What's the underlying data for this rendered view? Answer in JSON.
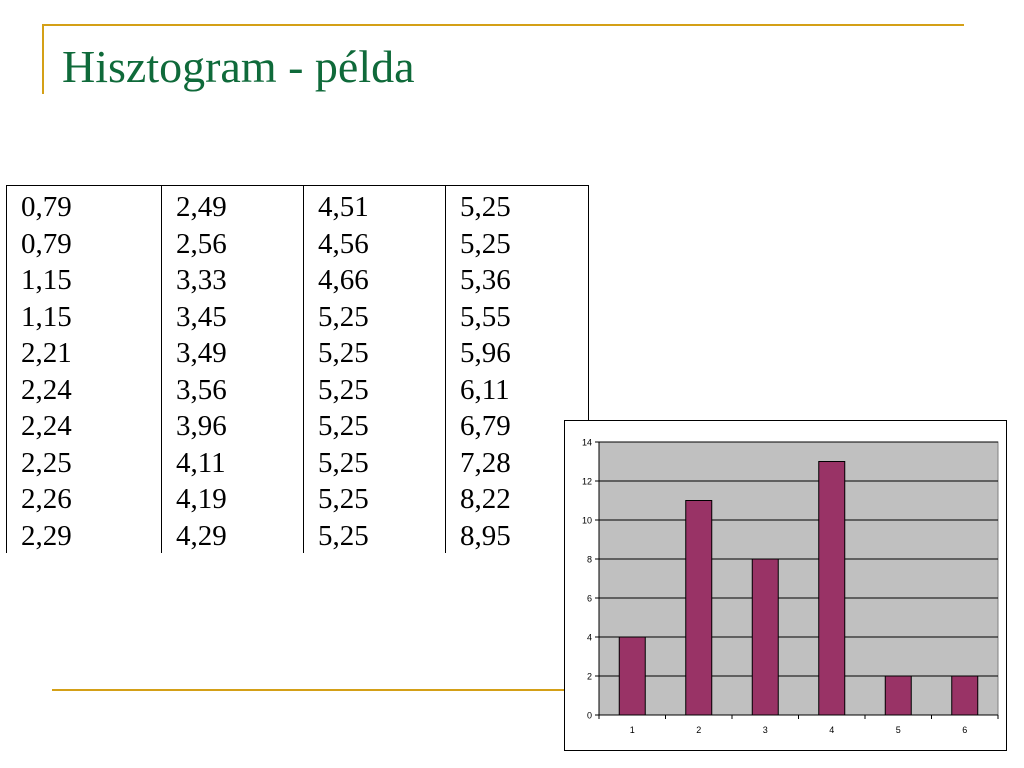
{
  "title": "Hisztogram - példa",
  "table": {
    "columns": [
      [
        "0,79",
        "0,79",
        "1,15",
        "1,15",
        "2,21",
        "2,24",
        "2,24",
        "2,25",
        "2,26",
        "2,29"
      ],
      [
        "2,49",
        "2,56",
        "3,33",
        "3,45",
        "3,49",
        "3,56",
        "3,96",
        "4,11",
        "4,19",
        "4,29"
      ],
      [
        "4,51",
        "4,56",
        "4,66",
        "5,25",
        "5,25",
        "5,25",
        "5,25",
        "5,25",
        "5,25",
        "5,25"
      ],
      [
        "5,25",
        "5,25",
        "5,36",
        "5,55",
        "5,96",
        "6,11",
        "6,79",
        "7,28",
        "8,22",
        "8,95"
      ]
    ]
  },
  "chart_data": {
    "type": "bar",
    "categories": [
      "1",
      "2",
      "3",
      "4",
      "5",
      "6"
    ],
    "values": [
      4,
      11,
      8,
      13,
      2,
      2
    ],
    "title": "",
    "xlabel": "",
    "ylabel": "",
    "ylim": [
      0,
      14
    ],
    "yticks": [
      0,
      2,
      4,
      6,
      8,
      10,
      12,
      14
    ],
    "grid": true,
    "legend": "none",
    "bar_color": "#993366",
    "plot_background": "#c0c0c0"
  },
  "colors": {
    "title": "#0f6a3a",
    "accent_line": "#d4a017"
  }
}
